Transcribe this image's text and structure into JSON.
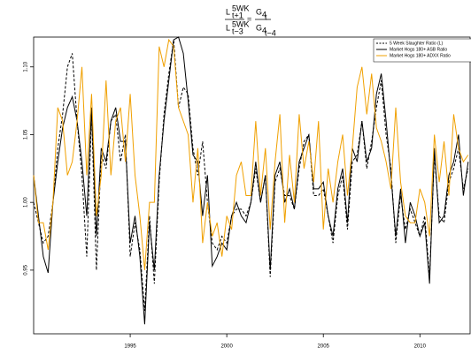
{
  "chart_data": {
    "type": "line",
    "title": {
      "num_left": [
        "L",
        "5WK",
        "t+1"
      ],
      "den_left": [
        "L",
        "5WK",
        "t−3"
      ],
      "equals": "=",
      "num_right": [
        "G",
        "4",
        "t"
      ],
      "den_right": [
        "G",
        "4",
        "t−4"
      ]
    },
    "x": [
      1990,
      1990.25,
      1990.5,
      1990.75,
      1991,
      1991.25,
      1991.5,
      1991.75,
      1992,
      1992.25,
      1992.5,
      1992.75,
      1993,
      1993.25,
      1993.5,
      1993.75,
      1994,
      1994.25,
      1994.5,
      1994.75,
      1995,
      1995.25,
      1995.5,
      1995.75,
      1996,
      1996.25,
      1996.5,
      1996.75,
      1997,
      1997.25,
      1997.5,
      1997.75,
      1998,
      1998.25,
      1998.5,
      1998.75,
      1999,
      1999.25,
      1999.5,
      1999.75,
      2000,
      2000.25,
      2000.5,
      2000.75,
      2001,
      2001.25,
      2001.5,
      2001.75,
      2002,
      2002.25,
      2002.5,
      2002.75,
      2003,
      2003.25,
      2003.5,
      2003.75,
      2004,
      2004.25,
      2004.5,
      2004.75,
      2005,
      2005.25,
      2005.5,
      2005.75,
      2006,
      2006.25,
      2006.5,
      2006.75,
      2007,
      2007.25,
      2007.5,
      2007.75,
      2008,
      2008.25,
      2008.5,
      2008.75,
      2009,
      2009.25,
      2009.5,
      2009.75,
      2010,
      2010.25,
      2010.5,
      2010.75,
      2011,
      2011.25,
      2011.5,
      2011.75,
      2012,
      2012.25,
      2012.5
    ],
    "series": [
      {
        "name": "5 Week Slaughter Ratio (L)",
        "color": "#000000",
        "linestyle": "dashed",
        "values": [
          1.0,
          0.985,
          0.97,
          0.975,
          1.0,
          1.04,
          1.065,
          1.1,
          1.11,
          1.06,
          1.02,
          0.96,
          1.065,
          0.95,
          1.035,
          1.025,
          1.06,
          1.065,
          1.03,
          1.05,
          0.96,
          0.985,
          0.965,
          0.92,
          0.99,
          0.94,
          1.015,
          1.065,
          1.095,
          1.12,
          1.07,
          1.085,
          1.08,
          1.04,
          1.02,
          1.045,
          1.0,
          0.97,
          0.965,
          0.975,
          0.97,
          0.99,
          0.995,
          0.995,
          0.99,
          1.0,
          1.025,
          1.0,
          1.02,
          0.945,
          1.015,
          1.025,
          1.005,
          1.005,
          0.995,
          1.025,
          1.045,
          1.05,
          1.005,
          1.005,
          1.01,
          0.99,
          0.97,
          1.005,
          1.02,
          0.98,
          1.03,
          1.035,
          1.06,
          1.025,
          1.045,
          1.07,
          1.09,
          1.05,
          1.025,
          0.97,
          1.005,
          0.98,
          0.995,
          0.985,
          0.975,
          0.99,
          0.945,
          1.035,
          0.99,
          0.985,
          1.015,
          1.025,
          1.04,
          1.01,
          1.025
        ]
      },
      {
        "name": "Market Hogs 180+ ASB Ratio",
        "color": "#000000",
        "linestyle": "solid",
        "values": [
          1.02,
          0.99,
          0.96,
          0.948,
          1.0,
          1.03,
          1.055,
          1.07,
          1.078,
          1.06,
          1.03,
          0.99,
          1.07,
          0.975,
          1.04,
          1.03,
          1.06,
          1.07,
          1.045,
          1.045,
          0.97,
          0.99,
          0.96,
          0.91,
          0.985,
          0.95,
          1.02,
          1.06,
          1.09,
          1.12,
          1.122,
          1.11,
          1.075,
          1.035,
          1.03,
          0.99,
          1.02,
          0.953,
          0.96,
          0.97,
          0.965,
          0.99,
          1.0,
          0.99,
          0.985,
          1.0,
          1.03,
          1.0,
          1.02,
          0.95,
          1.02,
          1.03,
          1.0,
          1.01,
          0.995,
          1.03,
          1.04,
          1.05,
          1.01,
          1.01,
          1.015,
          0.99,
          0.975,
          1.01,
          1.025,
          0.985,
          1.04,
          1.03,
          1.06,
          1.03,
          1.04,
          1.08,
          1.095,
          1.06,
          1.02,
          0.975,
          1.01,
          0.97,
          1.0,
          0.99,
          0.975,
          0.985,
          0.94,
          1.04,
          0.985,
          0.99,
          1.02,
          1.03,
          1.05,
          1.005,
          1.03
        ]
      },
      {
        "name": "Market Hogs 180+ ADXX Ratio",
        "color": "#f0a000",
        "linestyle": "solid",
        "values": [
          1.02,
          0.985,
          0.985,
          0.965,
          1.0,
          1.07,
          1.06,
          1.02,
          1.03,
          1.06,
          1.1,
          1.02,
          1.08,
          0.99,
          1.02,
          1.09,
          1.02,
          1.06,
          1.07,
          1.03,
          1.08,
          1.02,
          0.99,
          0.95,
          1.0,
          1.0,
          1.115,
          1.1,
          1.12,
          1.115,
          1.07,
          1.06,
          1.05,
          1.0,
          1.04,
          0.97,
          1.0,
          0.975,
          0.985,
          0.96,
          0.99,
          0.98,
          1.02,
          1.03,
          1.005,
          1.005,
          1.06,
          1.005,
          1.04,
          0.98,
          1.03,
          1.065,
          0.985,
          1.035,
          1.0,
          1.065,
          1.025,
          1.045,
          1.015,
          1.06,
          0.98,
          1.025,
          1.0,
          1.03,
          1.05,
          1.005,
          1.04,
          1.085,
          1.1,
          1.065,
          1.095,
          1.055,
          1.045,
          1.03,
          1.01,
          1.07,
          1.015,
          0.99,
          0.985,
          0.985,
          1.01,
          1.0,
          0.975,
          1.05,
          1.015,
          1.045,
          1.005,
          1.065,
          1.04,
          1.03,
          1.035
        ]
      }
    ],
    "xlim": [
      1990,
      2012.6
    ],
    "ylim": [
      0.903,
      1.122
    ],
    "xticks": [
      1995,
      2000,
      2005,
      2010
    ],
    "yticks": [
      0.95,
      {
        "value": 1,
        "label": "1.00"
      },
      1.05,
      {
        "value": 1.1,
        "label": "1.10"
      }
    ],
    "legend": "top-right",
    "grid": false
  }
}
